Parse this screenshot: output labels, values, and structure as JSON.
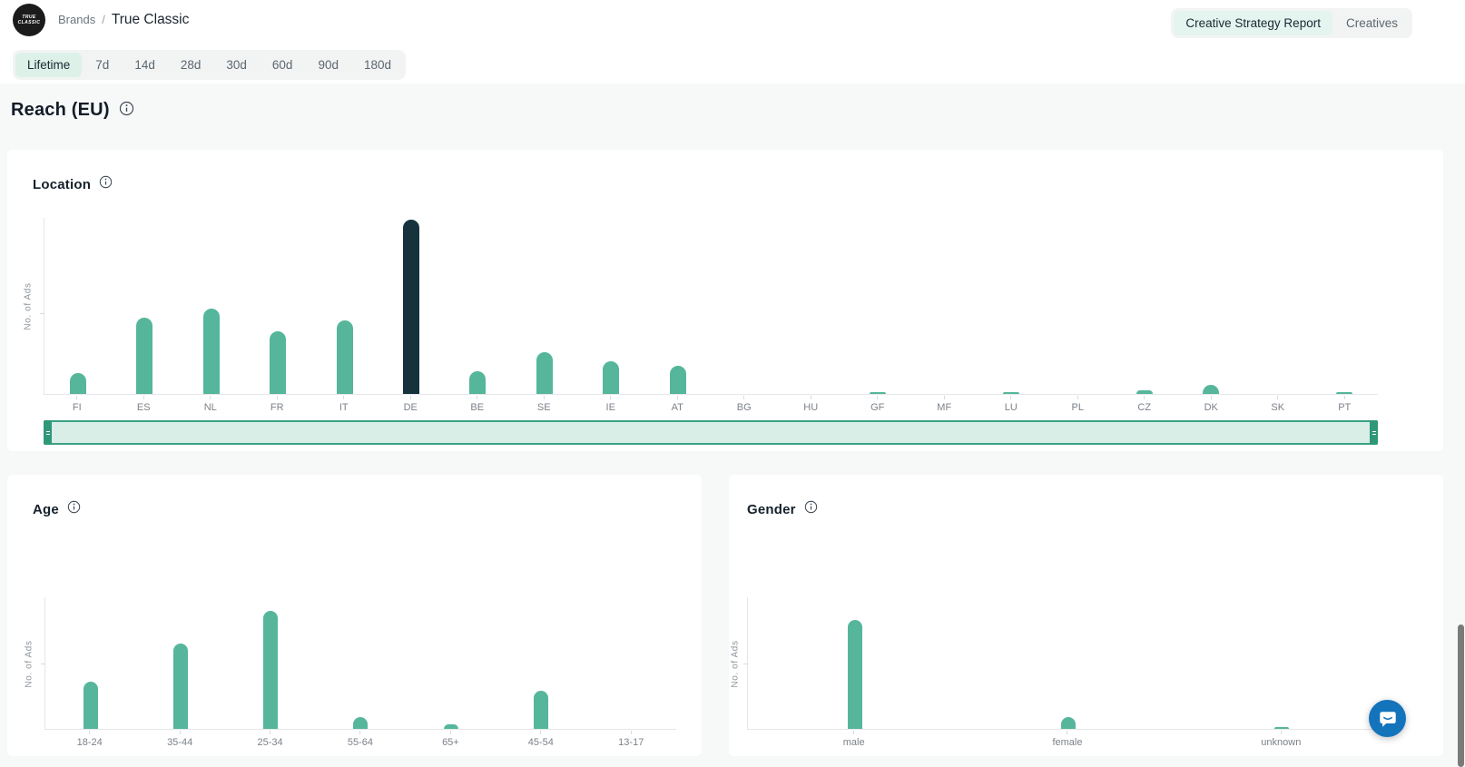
{
  "header": {
    "logo_text_line1": "TRUE",
    "logo_text_line2": "CLASSIC",
    "breadcrumb": {
      "root": "Brands",
      "separator": "/",
      "current": "True Classic"
    },
    "view_toggle": {
      "active": "Creative Strategy Report",
      "options": [
        "Creative Strategy Report",
        "Creatives"
      ]
    }
  },
  "time_filters": {
    "active": "Lifetime",
    "options": [
      "Lifetime",
      "7d",
      "14d",
      "28d",
      "30d",
      "60d",
      "90d",
      "180d"
    ]
  },
  "page": {
    "title": "Reach (EU)"
  },
  "chart_data": [
    {
      "id": "location",
      "title": "Location",
      "type": "bar",
      "ylabel": "No. of Ads",
      "y_axis_tick_labels": "none",
      "value_scale": "percent_of_max_bar",
      "categories": [
        "FI",
        "ES",
        "NL",
        "FR",
        "IT",
        "DE",
        "BE",
        "SE",
        "IE",
        "AT",
        "BG",
        "HU",
        "GF",
        "MF",
        "LU",
        "PL",
        "CZ",
        "DK",
        "SK",
        "PT"
      ],
      "values": [
        12,
        44,
        49,
        36,
        42,
        100,
        13,
        24,
        19,
        16,
        0,
        0,
        1,
        0,
        1,
        0,
        2,
        5,
        0,
        1
      ],
      "highlight_category": "DE",
      "bar_color": "#55b69b",
      "highlight_color": "#16323c",
      "has_range_slider": true,
      "legend": "none",
      "grid": "off"
    },
    {
      "id": "age",
      "title": "Age",
      "type": "bar",
      "ylabel": "No. of Ads",
      "y_axis_tick_labels": "none",
      "value_scale": "percent_of_max_bar",
      "categories": [
        "18-24",
        "35-44",
        "25-34",
        "55-64",
        "65+",
        "45-54",
        "13-17"
      ],
      "values": [
        40,
        72,
        100,
        10,
        4,
        32,
        0
      ],
      "bar_color": "#55b69b",
      "legend": "none",
      "grid": "off"
    },
    {
      "id": "gender",
      "title": "Gender",
      "type": "bar",
      "ylabel": "No. of Ads",
      "y_axis_tick_labels": "none",
      "value_scale": "percent_of_max_bar",
      "categories": [
        "male",
        "female",
        "unknown"
      ],
      "values": [
        100,
        11,
        2
      ],
      "bar_color": "#55b69b",
      "legend": "none",
      "grid": "off"
    }
  ],
  "icons": {
    "info": "circled-i",
    "chat": "speech-bubble-smile"
  },
  "colors": {
    "accent_teal": "#55b69b",
    "accent_dark": "#16323c",
    "active_pill_bg": "#ddf1e8",
    "page_bg": "#f7f8f8",
    "card_bg": "#ffffff",
    "slider_fill": "#d8eee6",
    "slider_border": "#3ba183",
    "intercom_blue": "#1373bb"
  }
}
